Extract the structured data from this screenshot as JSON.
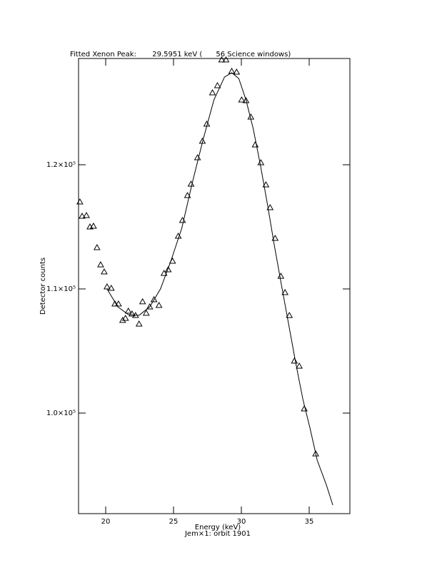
{
  "chart_data": {
    "type": "scatter",
    "title": "Fitted Xenon Peak:       29.5951 keV (      56 Science windows)",
    "x_label": "Energy (keV)",
    "subtitle": "Jem×1: orbit 1901",
    "y_label": "Detector counts",
    "xlim": [
      18,
      38
    ],
    "ylim": [
      91900,
      128560
    ],
    "xticks": [
      20,
      25,
      30,
      35
    ],
    "yticks": [
      {
        "value": 100000,
        "label": "1.0×10⁵"
      },
      {
        "value": 110000,
        "label": "1.1×10⁵"
      },
      {
        "value": 120000,
        "label": "1.2×10⁵"
      }
    ],
    "series": [
      {
        "type": "scatter",
        "color": "#000000",
        "x": [
          18.1,
          18.26,
          18.58,
          18.84,
          19.1,
          19.36,
          19.63,
          19.89,
          20.1,
          20.41,
          20.68,
          20.94,
          21.25,
          21.46,
          21.67,
          21.94,
          22.2,
          22.46,
          22.72,
          22.99,
          23.25,
          23.56,
          23.93,
          24.3,
          24.61,
          24.93,
          25.35,
          25.66,
          26.03,
          26.29,
          26.77,
          27.13,
          27.45,
          27.87,
          28.24,
          28.55,
          28.87,
          29.29,
          29.65,
          30.02,
          30.34,
          30.7,
          31.02,
          31.44,
          31.81,
          32.12,
          32.49,
          32.91,
          33.22,
          33.54,
          33.91,
          34.27,
          34.64,
          35.48
        ],
        "values": [
          117010,
          115860,
          115920,
          115000,
          115060,
          113330,
          111950,
          111380,
          110170,
          110060,
          108790,
          108790,
          107470,
          107640,
          108220,
          107990,
          107870,
          107180,
          108970,
          108050,
          108560,
          109140,
          108680,
          111260,
          111550,
          112240,
          114250,
          115520,
          117530,
          118450,
          120570,
          121900,
          123280,
          125800,
          126380,
          128450,
          128450,
          127530,
          127470,
          125230,
          125170,
          123850,
          121610,
          120170,
          118390,
          116550,
          114080,
          111030,
          109710,
          107870,
          104200,
          103790,
          100350,
          96720
        ]
      },
      {
        "type": "line",
        "color": "#000000",
        "x": [
          20.1,
          20.89,
          21.67,
          22.46,
          23.25,
          24.04,
          24.82,
          25.61,
          26.4,
          27.19,
          27.98,
          28.76,
          29.29,
          29.81,
          30.34,
          30.87,
          31.39,
          31.91,
          32.44,
          32.96,
          33.49,
          34.02,
          34.54,
          35.06,
          35.59,
          36.27,
          36.74
        ],
        "values": [
          110000,
          108560,
          107930,
          107870,
          108560,
          110000,
          112300,
          114890,
          118620,
          122070,
          125230,
          127070,
          127410,
          126950,
          125230,
          122930,
          120060,
          116900,
          113450,
          110290,
          107130,
          103970,
          101090,
          98790,
          96210,
          94200,
          92590
        ]
      }
    ]
  }
}
